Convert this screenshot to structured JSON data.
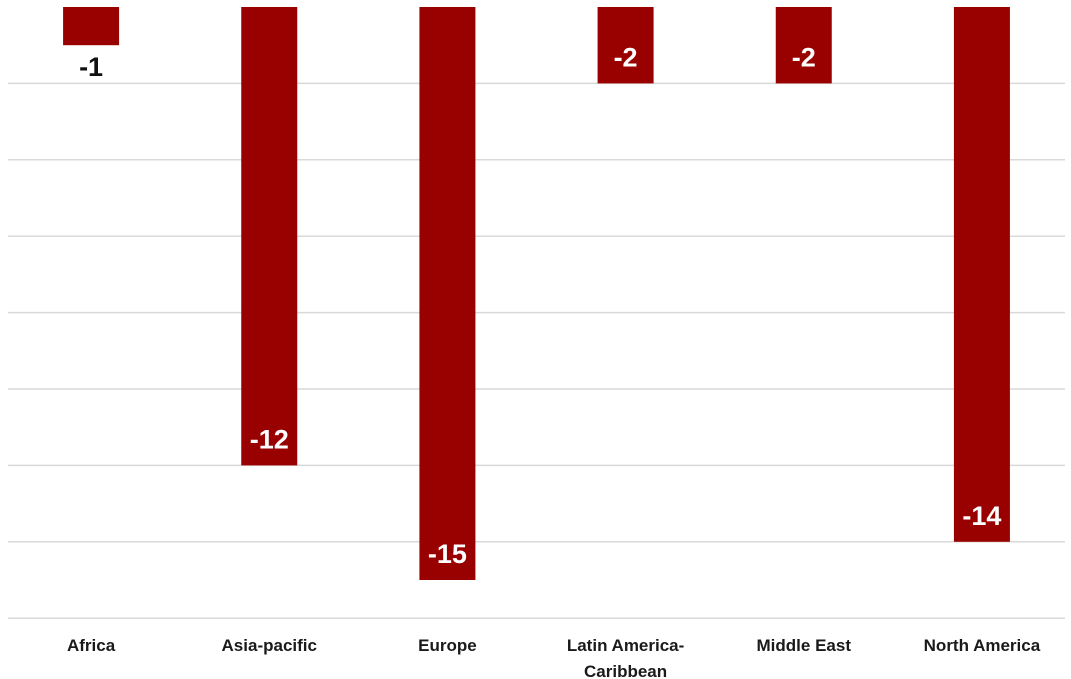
{
  "chart_data": {
    "type": "bar",
    "title": "",
    "xlabel": "",
    "ylabel": "",
    "categories": [
      [
        "Africa"
      ],
      [
        "Asia-pacific"
      ],
      [
        "Europe"
      ],
      [
        "Latin America-",
        "Caribbean"
      ],
      [
        "Middle East"
      ],
      [
        "North America"
      ]
    ],
    "values": [
      -1,
      -12,
      -15,
      -2,
      -2,
      -14
    ],
    "value_labels": [
      "-1",
      "-12",
      "-15",
      "-2",
      "-2",
      "-14"
    ],
    "ylim": [
      -16,
      0
    ],
    "grid": true,
    "legend": "none",
    "colors": {
      "bar": "#990000",
      "label_inside": "#ffffff",
      "label_outside": "#111111"
    }
  }
}
